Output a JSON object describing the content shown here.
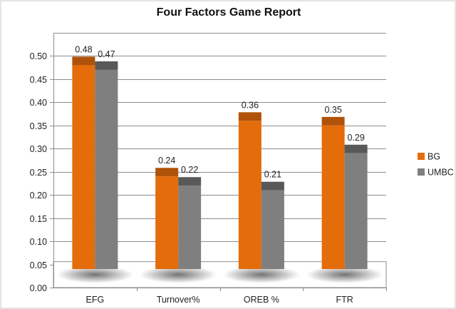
{
  "chart_data": {
    "type": "bar",
    "title": "Four Factors Game Report",
    "xlabel": "",
    "ylabel": "",
    "categories": [
      "EFG",
      "Turnover%",
      "OREB %",
      "FTR"
    ],
    "series": [
      {
        "name": "BG",
        "values": [
          0.48,
          0.24,
          0.36,
          0.35
        ],
        "labels": [
          "0.48",
          "0.24",
          "0.36",
          "0.35"
        ],
        "color": "#E46C0A",
        "top_color": "#B0520A"
      },
      {
        "name": "UMBC",
        "values": [
          0.47,
          0.22,
          0.21,
          0.29
        ],
        "labels": [
          "0.47",
          "0.22",
          "0.21",
          "0.29"
        ],
        "color": "#7F7F7F",
        "top_color": "#595959"
      }
    ],
    "ylim": [
      0,
      0.55
    ],
    "yticks": [
      "0.00",
      "0.05",
      "0.10",
      "0.15",
      "0.20",
      "0.25",
      "0.30",
      "0.35",
      "0.40",
      "0.45",
      "0.50"
    ],
    "grid": true,
    "legend_position": "right",
    "style": "3d-bar"
  }
}
